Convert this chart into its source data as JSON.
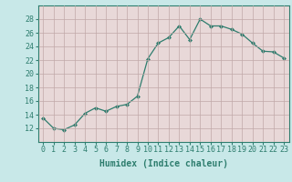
{
  "x": [
    0,
    1,
    2,
    3,
    4,
    5,
    6,
    7,
    8,
    9,
    10,
    11,
    12,
    13,
    14,
    15,
    16,
    17,
    18,
    19,
    20,
    21,
    22,
    23
  ],
  "y": [
    13.5,
    12.0,
    11.8,
    12.5,
    14.2,
    15.0,
    14.5,
    15.2,
    15.5,
    16.7,
    22.2,
    24.5,
    25.3,
    27.0,
    25.0,
    28.0,
    27.0,
    27.0,
    26.5,
    25.8,
    24.5,
    23.3,
    23.2,
    22.3
  ],
  "line_color": "#2e7d6e",
  "marker": "D",
  "markersize": 2.0,
  "linewidth": 0.9,
  "bg_color": "#c8e8e8",
  "plot_bg_color": "#e8d8d8",
  "grid_color": "#c0a8a8",
  "xlabel": "Humidex (Indice chaleur)",
  "ylim": [
    10,
    30
  ],
  "xlim": [
    -0.5,
    23.5
  ],
  "yticks": [
    12,
    14,
    16,
    18,
    20,
    22,
    24,
    26,
    28
  ],
  "xticks": [
    0,
    1,
    2,
    3,
    4,
    5,
    6,
    7,
    8,
    9,
    10,
    11,
    12,
    13,
    14,
    15,
    16,
    17,
    18,
    19,
    20,
    21,
    22,
    23
  ],
  "xlabel_fontsize": 7.0,
  "tick_fontsize": 6.0,
  "tick_color": "#2e7d6e",
  "spine_color": "#2e7d6e"
}
